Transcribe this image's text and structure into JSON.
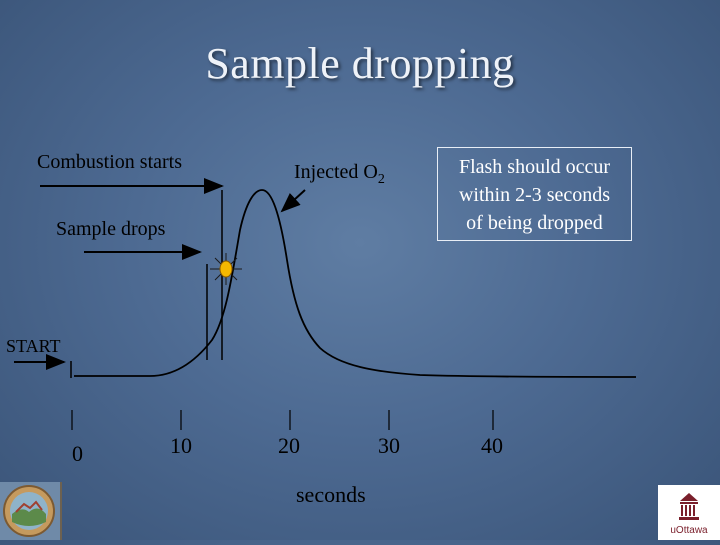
{
  "title": "Sample dropping",
  "labels": {
    "combustion": "Combustion starts",
    "injected": "Injected O",
    "injected_sub": "2",
    "sample_drops": "Sample drops",
    "start": "START"
  },
  "note": {
    "line1": "Flash should occur",
    "line2": "within 2-3 seconds",
    "line3": "of being dropped"
  },
  "axis": {
    "ticks": [
      "0",
      "10",
      "20",
      "30",
      "40"
    ],
    "xlabel": "seconds"
  },
  "logos": {
    "right_text": "uOttawa"
  },
  "colors": {
    "background": "#4d6a92",
    "title": "#eef2f8",
    "flash": "#f5b800"
  }
}
